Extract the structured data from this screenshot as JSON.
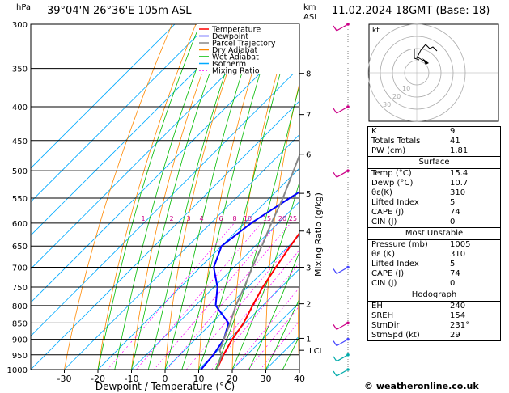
{
  "header": {
    "location": "39°04'N 26°36'E 105m ASL",
    "date": "11.02.2024 18GMT (Base: 18)",
    "p_unit": "hPa",
    "km_unit": "km",
    "asl": "ASL"
  },
  "legend": [
    {
      "label": "Temperature",
      "color": "#ff0000",
      "dash": ""
    },
    {
      "label": "Dewpoint",
      "color": "#0000ff",
      "dash": ""
    },
    {
      "label": "Parcel Trajectory",
      "color": "#888888",
      "dash": ""
    },
    {
      "label": "Dry Adiabat",
      "color": "#ff8800",
      "dash": ""
    },
    {
      "label": "Wet Adiabat",
      "color": "#00bb00",
      "dash": ""
    },
    {
      "label": "Isotherm",
      "color": "#00aaff",
      "dash": ""
    },
    {
      "label": "Mixing Ratio",
      "color": "#ff00ff",
      "dash": "2,2"
    }
  ],
  "chart_data": {
    "type": "line",
    "xlabel": "Dewpoint / Temperature (°C)",
    "ylabel_right": "Mixing Ratio (g/kg)",
    "x_ticks": [
      -30,
      -20,
      -10,
      0,
      10,
      20,
      30,
      40
    ],
    "xlim": [
      -40,
      40
    ],
    "p_levels": [
      300,
      350,
      400,
      450,
      500,
      550,
      600,
      650,
      700,
      750,
      800,
      850,
      900,
      950,
      1000
    ],
    "km_ticks": [
      {
        "km": "1",
        "p": 897
      },
      {
        "km": "2",
        "p": 795
      },
      {
        "km": "3",
        "p": 700
      },
      {
        "km": "4",
        "p": 617
      },
      {
        "km": "5",
        "p": 541
      },
      {
        "km": "6",
        "p": 472
      },
      {
        "km": "7",
        "p": 411
      },
      {
        "km": "8",
        "p": 356
      }
    ],
    "lcl": {
      "label": "LCL",
      "p": 935
    },
    "mixing_ratio_labels": [
      "1",
      "2",
      "3",
      "4",
      "6",
      "8",
      "10",
      "15",
      "20",
      "25"
    ],
    "series": [
      {
        "name": "Temperature",
        "color": "#ff0000",
        "points": [
          [
            15.4,
            1000
          ],
          [
            13,
            950
          ],
          [
            11,
            900
          ],
          [
            9.5,
            850
          ],
          [
            7,
            800
          ],
          [
            4.5,
            750
          ],
          [
            2.5,
            700
          ],
          [
            0.5,
            650
          ],
          [
            -1.5,
            600
          ],
          [
            -4.5,
            550
          ],
          [
            -8.5,
            500
          ],
          [
            -13,
            450
          ],
          [
            -19,
            400
          ],
          [
            -26.5,
            350
          ],
          [
            -35,
            300
          ]
        ]
      },
      {
        "name": "Dewpoint",
        "color": "#0000ff",
        "points": [
          [
            10.7,
            1000
          ],
          [
            10,
            950
          ],
          [
            8.5,
            900
          ],
          [
            5,
            850
          ],
          [
            -4,
            800
          ],
          [
            -9,
            750
          ],
          [
            -16,
            700
          ],
          [
            -20,
            650
          ],
          [
            -18,
            600
          ],
          [
            -14,
            550
          ],
          [
            -9,
            500
          ],
          [
            -14,
            450
          ],
          [
            -20,
            400
          ],
          [
            -28,
            350
          ],
          [
            -37,
            300
          ]
        ]
      },
      {
        "name": "Parcel Trajectory",
        "color": "#888888",
        "points": [
          [
            15.4,
            1000
          ],
          [
            12.5,
            950
          ],
          [
            10.5,
            935
          ],
          [
            8.5,
            900
          ],
          [
            5.5,
            850
          ],
          [
            2,
            800
          ],
          [
            -1,
            750
          ],
          [
            -4.5,
            700
          ],
          [
            -8,
            650
          ],
          [
            -12,
            600
          ],
          [
            -16,
            550
          ],
          [
            -21,
            500
          ],
          [
            -26.5,
            450
          ],
          [
            -33,
            400
          ],
          [
            -40,
            350
          ],
          [
            -48,
            300
          ]
        ]
      }
    ]
  },
  "hodograph": {
    "label": "kt",
    "rings": [
      "10",
      "20",
      "30"
    ]
  },
  "indices": [
    {
      "label": "K",
      "value": "9"
    },
    {
      "label": "Totals Totals",
      "value": "41"
    },
    {
      "label": "PW (cm)",
      "value": "1.81"
    }
  ],
  "surface": {
    "title": "Surface",
    "rows": [
      {
        "label": "Temp (°C)",
        "value": "15.4"
      },
      {
        "label": "Dewp (°C)",
        "value": "10.7"
      },
      {
        "label": "θε(K)",
        "value": "310"
      },
      {
        "label": "Lifted Index",
        "value": "5"
      },
      {
        "label": "CAPE (J)",
        "value": "74"
      },
      {
        "label": "CIN (J)",
        "value": "0"
      }
    ]
  },
  "most_unstable": {
    "title": "Most Unstable",
    "rows": [
      {
        "label": "Pressure (mb)",
        "value": "1005"
      },
      {
        "label": "θε (K)",
        "value": "310"
      },
      {
        "label": "Lifted Index",
        "value": "5"
      },
      {
        "label": "CAPE (J)",
        "value": "74"
      },
      {
        "label": "CIN (J)",
        "value": "0"
      }
    ]
  },
  "hodograph_table": {
    "title": "Hodograph",
    "rows": [
      {
        "label": "EH",
        "value": "240"
      },
      {
        "label": "SREH",
        "value": "154"
      },
      {
        "label": "StmDir",
        "value": "231°"
      },
      {
        "label": "StmSpd (kt)",
        "value": "29"
      }
    ]
  },
  "copyright": "© weatheronline.co.uk"
}
